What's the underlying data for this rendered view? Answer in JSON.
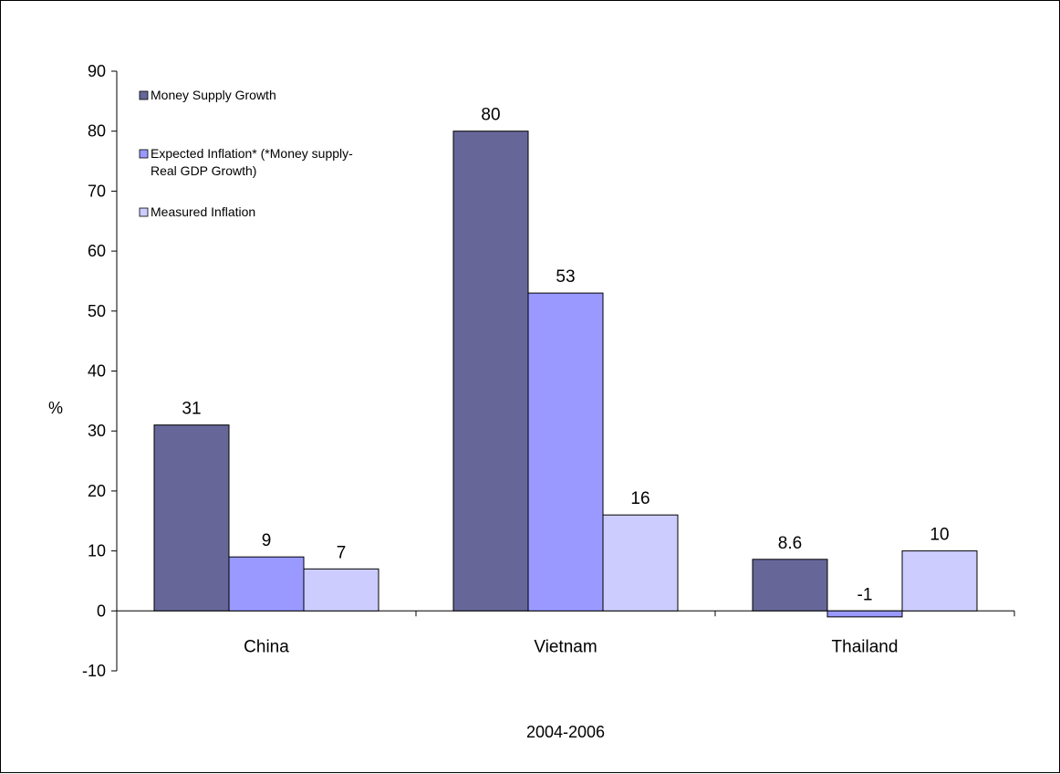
{
  "chart_data": {
    "type": "bar",
    "title": "",
    "xlabel": "2004-2006",
    "ylabel": "%",
    "ylim": [
      -10,
      90
    ],
    "yticks": [
      -10,
      0,
      10,
      20,
      30,
      40,
      50,
      60,
      70,
      80,
      90
    ],
    "categories": [
      "China",
      "Vietnam",
      "Thailand"
    ],
    "series": [
      {
        "name": "Money Supply Growth",
        "color": "#666699",
        "values": [
          31,
          80,
          8.6
        ],
        "labels": [
          "31",
          "80",
          "8.6"
        ]
      },
      {
        "name": "Expected Inflation* (*Money supply-Real GDP Growth)",
        "name_lines": [
          "Expected Inflation* (*Money supply-",
          "Real GDP Growth)"
        ],
        "color": "#9999ff",
        "values": [
          9,
          53,
          -1
        ],
        "labels": [
          "9",
          "53",
          "-1"
        ]
      },
      {
        "name": "Measured Inflation",
        "color": "#ccccff",
        "values": [
          7,
          16,
          10
        ],
        "labels": [
          "7",
          "16",
          "10"
        ]
      }
    ],
    "legend_position": "top-left",
    "grid": false
  }
}
